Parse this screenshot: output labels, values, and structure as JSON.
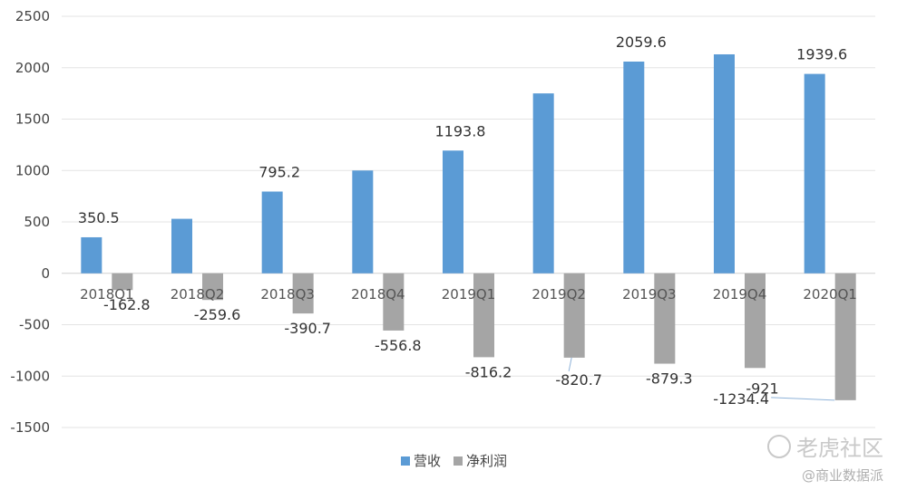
{
  "chart_data": {
    "type": "bar",
    "categories": [
      "2018Q1",
      "2018Q2",
      "2018Q3",
      "2018Q4",
      "2019Q1",
      "2019Q2",
      "2019Q3",
      "2019Q4",
      "2020Q1"
    ],
    "series": [
      {
        "name": "营收",
        "color": "#5b9bd5",
        "values": [
          350.5,
          530,
          795.2,
          1000,
          1193.8,
          1750,
          2059.6,
          2130,
          1939.6
        ],
        "labels": [
          "350.5",
          "",
          "795.2",
          "",
          "1193.8",
          "",
          "2059.6",
          "",
          "1939.6"
        ]
      },
      {
        "name": "净利润",
        "color": "#a5a5a5",
        "values": [
          -162.8,
          -259.6,
          -390.7,
          -556.8,
          -816.2,
          -820.7,
          -879.3,
          -921,
          -1234.4
        ],
        "labels": [
          "-162.8",
          "-259.6",
          "-390.7",
          "-556.8",
          "-816.2",
          "-820.7",
          "-879.3",
          "-921",
          "-1234.4"
        ]
      }
    ],
    "ylim": [
      -1500,
      2500
    ],
    "yticks": [
      2500,
      2000,
      1500,
      1000,
      500,
      0,
      -500,
      -1000,
      -1500
    ],
    "grid": true,
    "legend": "bottom",
    "title": "",
    "xlabel": "",
    "ylabel": ""
  },
  "watermark": {
    "brand": "老虎社区",
    "author": "@商业数据派"
  }
}
